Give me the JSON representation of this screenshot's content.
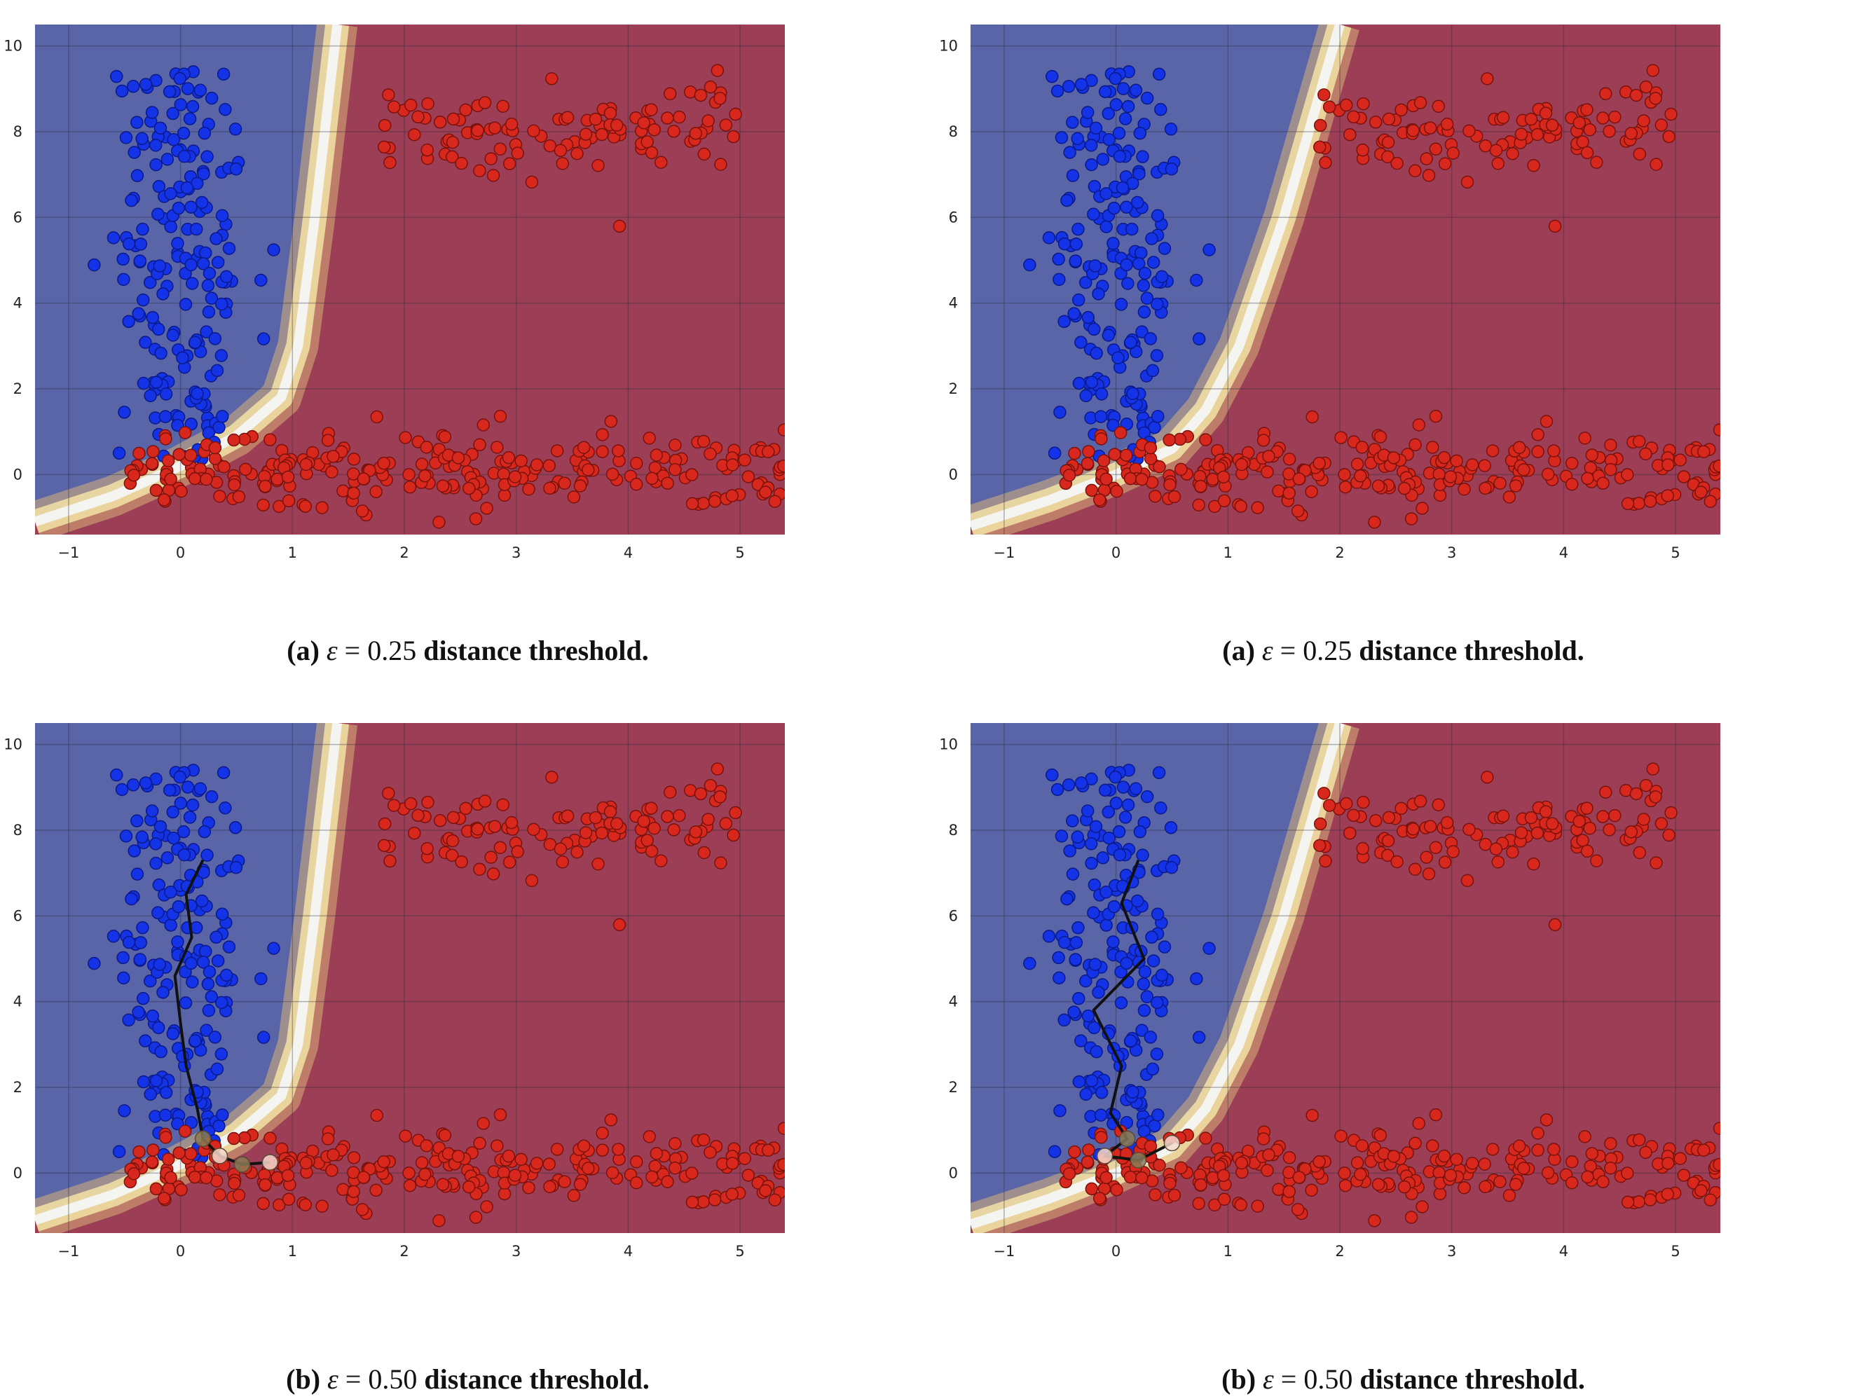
{
  "chart_data": [
    {
      "type": "scatter",
      "caption": {
        "label": "(a)",
        "eps": "ε",
        "eq": "= 0.25",
        "text": "distance threshold."
      },
      "xlim": [
        -1.3,
        5.4
      ],
      "ylim": [
        -1.4,
        10.5
      ],
      "xticks": [
        -1,
        0,
        1,
        2,
        3,
        4,
        5
      ],
      "yticks": [
        0,
        2,
        4,
        6,
        8,
        10
      ],
      "grid": true,
      "boundary": [
        [
          -1.3,
          -1.1
        ],
        [
          -0.6,
          -0.5
        ],
        [
          0,
          0.2
        ],
        [
          0.5,
          0.9
        ],
        [
          0.9,
          1.8
        ],
        [
          1.05,
          3.0
        ],
        [
          1.2,
          6.0
        ],
        [
          1.4,
          10.5
        ]
      ],
      "path": []
    },
    {
      "type": "scatter",
      "caption": {
        "label": "(a)",
        "eps": "ε",
        "eq": "= 0.25",
        "text": "distance threshold."
      },
      "xlim": [
        -1.3,
        5.4
      ],
      "ylim": [
        -1.4,
        10.5
      ],
      "xticks": [
        -1,
        0,
        1,
        2,
        3,
        4,
        5
      ],
      "yticks": [
        0,
        2,
        4,
        6,
        8,
        10
      ],
      "grid": true,
      "boundary": [
        [
          -1.3,
          -1.2
        ],
        [
          -0.6,
          -0.6
        ],
        [
          0,
          0.0
        ],
        [
          0.5,
          0.6
        ],
        [
          0.8,
          1.5
        ],
        [
          1.1,
          3.0
        ],
        [
          1.5,
          6.0
        ],
        [
          2.0,
          10.5
        ]
      ],
      "path": []
    },
    {
      "type": "scatter",
      "caption": {
        "label": "(b)",
        "eps": "ε",
        "eq": "= 0.50",
        "text": "distance threshold."
      },
      "xlim": [
        -1.3,
        5.4
      ],
      "ylim": [
        -1.4,
        10.5
      ],
      "xticks": [
        -1,
        0,
        1,
        2,
        3,
        4,
        5
      ],
      "yticks": [
        0,
        2,
        4,
        6,
        8,
        10
      ],
      "grid": true,
      "boundary": [
        [
          -1.3,
          -1.1
        ],
        [
          -0.6,
          -0.5
        ],
        [
          0,
          0.2
        ],
        [
          0.5,
          0.9
        ],
        [
          0.9,
          1.8
        ],
        [
          1.05,
          3.0
        ],
        [
          1.2,
          6.0
        ],
        [
          1.4,
          10.5
        ]
      ],
      "path": [
        [
          0.2,
          7.3
        ],
        [
          0.05,
          6.5
        ],
        [
          0.1,
          5.5
        ],
        [
          -0.05,
          4.6
        ],
        [
          0.0,
          3.5
        ],
        [
          0.05,
          2.5
        ],
        [
          0.15,
          1.5
        ],
        [
          0.2,
          0.8
        ],
        [
          0.35,
          0.4
        ],
        [
          0.55,
          0.2
        ],
        [
          0.8,
          0.25
        ]
      ]
    },
    {
      "type": "scatter",
      "caption": {
        "label": "(b)",
        "eps": "ε",
        "eq": "= 0.50",
        "text": "distance threshold."
      },
      "xlim": [
        -1.3,
        5.4
      ],
      "ylim": [
        -1.4,
        10.5
      ],
      "xticks": [
        -1,
        0,
        1,
        2,
        3,
        4,
        5
      ],
      "yticks": [
        0,
        2,
        4,
        6,
        8,
        10
      ],
      "grid": true,
      "boundary": [
        [
          -1.3,
          -1.2
        ],
        [
          -0.6,
          -0.6
        ],
        [
          0,
          0.0
        ],
        [
          0.5,
          0.6
        ],
        [
          0.8,
          1.5
        ],
        [
          1.1,
          3.0
        ],
        [
          1.5,
          6.0
        ],
        [
          2.0,
          10.5
        ]
      ],
      "path": [
        [
          0.2,
          7.3
        ],
        [
          0.05,
          6.3
        ],
        [
          0.25,
          5.0
        ],
        [
          -0.2,
          3.8
        ],
        [
          0.05,
          2.5
        ],
        [
          -0.05,
          1.4
        ],
        [
          0.1,
          0.8
        ],
        [
          -0.1,
          0.4
        ],
        [
          0.2,
          0.3
        ],
        [
          0.5,
          0.7
        ]
      ]
    }
  ],
  "classes": [
    {
      "name": "blue",
      "color": "#1432e6",
      "edge": "#0a1a8a",
      "n": 190,
      "x_mean": 0.0,
      "x_sd": 0.3,
      "y_range": [
        0.3,
        9.4
      ]
    },
    {
      "name": "red-top",
      "color": "#d8281e",
      "edge": "#7a120c",
      "n": 110,
      "x_range": [
        1.8,
        5.0
      ],
      "y_mean": 8.1,
      "y_sd": 0.55
    },
    {
      "name": "red-bottom",
      "color": "#d8281e",
      "edge": "#7a120c",
      "n": 260,
      "x_range": [
        -0.5,
        5.4
      ],
      "y_mean": 0.1,
      "y_sd": 0.45
    }
  ],
  "colors": {
    "blue_region": "#5965a6",
    "red_region": "#9b3e56",
    "grid": "#2a2a3a"
  }
}
